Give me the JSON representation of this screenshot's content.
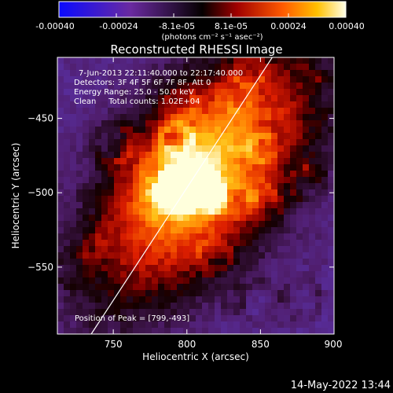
{
  "colorbar": {
    "ticks": [
      "-0.00040",
      "-0.00024",
      "-8.1e-05",
      "8.1e-05",
      "0.00024",
      "0.00040"
    ],
    "unit_label": "(photons cm⁻² s⁻¹ asec⁻²)"
  },
  "chart_data": {
    "type": "heatmap",
    "title": "Reconstructed RHESSI Image",
    "xlabel": "Heliocentric X (arcsec)",
    "ylabel": "Heliocentric Y (arcsec)",
    "xlim": [
      712,
      900
    ],
    "ylim": [
      -595,
      -409
    ],
    "x_ticks": [
      750,
      800,
      850,
      900
    ],
    "y_ticks": [
      -450,
      -500,
      -550
    ],
    "x_tick_labels": [
      "750",
      "800",
      "850",
      "900"
    ],
    "y_tick_labels": [
      "−450",
      "−500",
      "−550"
    ],
    "colorbar_range": [
      -0.0004,
      0.0004
    ],
    "limb_line": [
      [
        735,
        -595
      ],
      [
        858,
        -409
      ]
    ],
    "peak_position": [
      799,
      -493
    ],
    "info_lines": [
      "7-Jun-2013 22:11:40.000 to 22:17:40.000",
      "Detectors: 3F 4F 5F 6F 7F 8F, Att 0",
      "Energy Range: 25.0 - 50.0 keV",
      "Clean     Total counts: 1.02E+04"
    ],
    "peak_label": "Position of Peak = [799,-493]"
  },
  "footer": {
    "timestamp": "14-May-2022 13:44"
  }
}
